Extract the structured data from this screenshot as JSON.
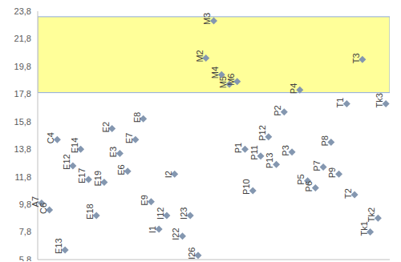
{
  "chart_data": {
    "type": "scatter",
    "marker": "diamond",
    "color": "#8497b0",
    "categories": [
      "A7",
      "C6",
      "C4",
      "E13",
      "E12",
      "E14",
      "E17",
      "E18",
      "E19",
      "E2",
      "E3",
      "E6",
      "E7",
      "E8",
      "E9",
      "I1",
      "I12",
      "I2",
      "I22",
      "I23",
      "I26",
      "M2",
      "M3",
      "M4",
      "M5",
      "M6",
      "P1",
      "P10",
      "P11",
      "P12",
      "P13",
      "P2",
      "P3",
      "P4",
      "P5",
      "P6",
      "P7",
      "P8",
      "P9",
      "T1",
      "T2",
      "T3",
      "Tk1",
      "Tk2",
      "Tk3"
    ],
    "values": [
      9.9,
      9.4,
      14.5,
      6.5,
      12.6,
      13.8,
      11.6,
      9.0,
      11.4,
      15.3,
      13.5,
      12.2,
      14.5,
      16.0,
      10.0,
      8.0,
      9.0,
      12.0,
      7.5,
      9.0,
      6.1,
      20.4,
      23.1,
      19.2,
      18.5,
      18.7,
      13.8,
      10.8,
      13.3,
      14.7,
      12.7,
      16.5,
      13.6,
      18.1,
      11.5,
      11.0,
      12.5,
      14.3,
      12.0,
      17.1,
      10.5,
      20.3,
      7.8,
      8.8,
      17.1
    ],
    "ylim": [
      5.8,
      23.8
    ],
    "yticks": [
      {
        "value": 5.8,
        "label": "5,8"
      },
      {
        "value": 7.8,
        "label": "7,8"
      },
      {
        "value": 9.8,
        "label": "9,8"
      },
      {
        "value": 11.8,
        "label": "11,8"
      },
      {
        "value": 13.8,
        "label": "13,8"
      },
      {
        "value": 15.8,
        "label": "15,8"
      },
      {
        "value": 17.8,
        "label": "17,8"
      },
      {
        "value": 19.8,
        "label": "19,8"
      },
      {
        "value": 21.8,
        "label": "21,8"
      },
      {
        "value": 23.8,
        "label": "23,8"
      }
    ],
    "band": [
      17.9,
      23.4
    ],
    "grid": false,
    "tick_labels": "y",
    "data_labels": false
  }
}
